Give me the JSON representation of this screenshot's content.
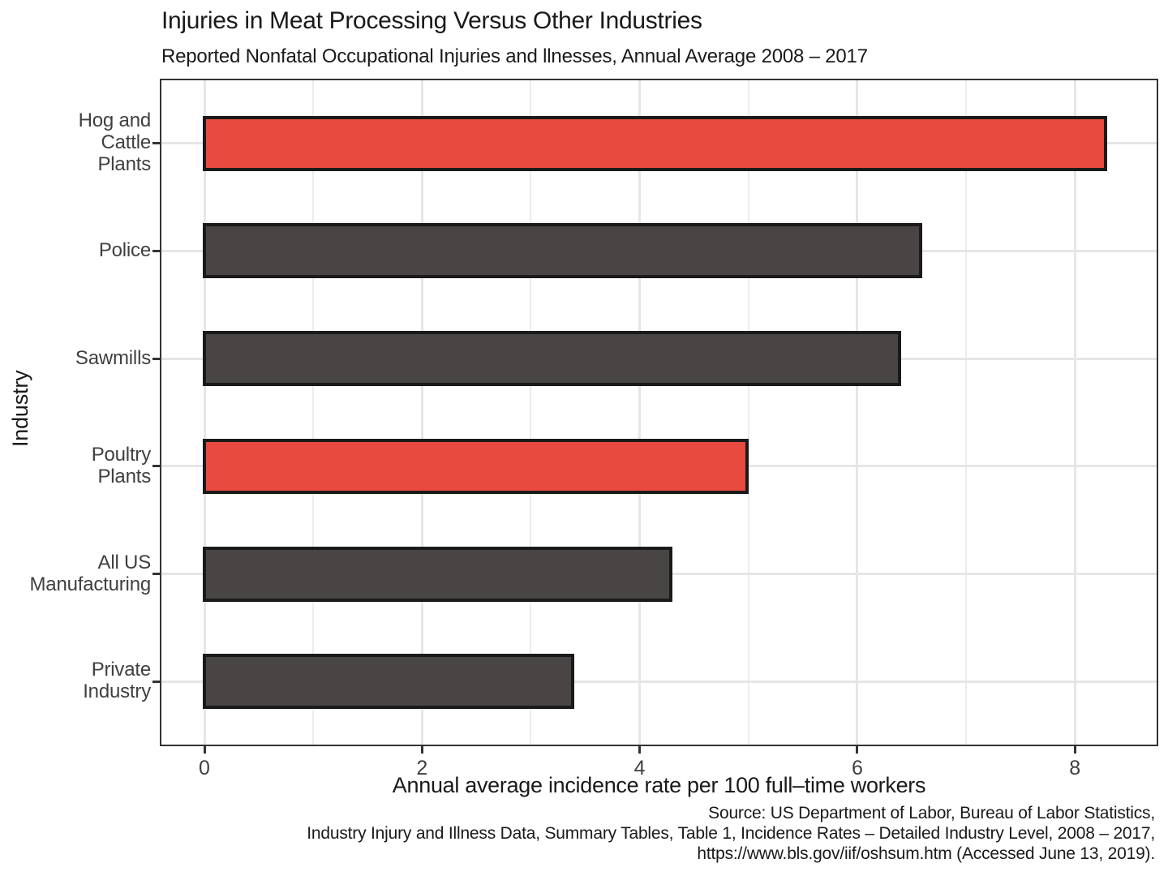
{
  "chart_data": {
    "type": "bar",
    "orientation": "horizontal",
    "title": "Injuries in Meat Processing Versus Other Industries",
    "subtitle": "Reported Nonfatal Occupational Injuries and llnesses, Annual Average 2008 – 2017",
    "xlabel": "Annual average incidence rate per 100 full–time workers",
    "ylabel": "Industry",
    "categories": [
      "Hog and Cattle Plants",
      "Police",
      "Sawmills",
      "Poultry Plants",
      "All US Manufacturing",
      "Private Industry"
    ],
    "category_label_lines": [
      [
        "Hog and",
        "Cattle",
        "Plants"
      ],
      [
        "Police"
      ],
      [
        "Sawmills"
      ],
      [
        "Poultry",
        "Plants"
      ],
      [
        "All US",
        "Manufacturing"
      ],
      [
        "Private",
        "Industry"
      ]
    ],
    "values": [
      8.3,
      6.6,
      6.4,
      5.0,
      4.3,
      3.4
    ],
    "highlighted": [
      true,
      false,
      false,
      true,
      false,
      false
    ],
    "x_ticks": [
      0,
      2,
      4,
      6,
      8
    ],
    "x_gridlines_minor": [
      1,
      3,
      5,
      7
    ],
    "xlim": [
      -0.42,
      8.76
    ],
    "ylim_categories": 6,
    "grid": true,
    "legend": "none",
    "colors": {
      "highlight_fill": "#E94A3F",
      "default_fill": "#4A4545",
      "bar_border": "#1A1A1A",
      "gridline_major": "#E6E6E6",
      "gridline_minor": "#EDEDED",
      "panel_border": "#333333",
      "tick_mark": "#333333",
      "axis_text": "#404040",
      "title_text": "#1A1A1A"
    }
  },
  "caption": {
    "lines": [
      "Source: US Department of Labor, Bureau of Labor Statistics,",
      "Industry Injury and Illness Data, Summary Tables, Table 1, Incidence Rates – Detailed Industry Level, 2008 – 2017,",
      "https://www.bls.gov/iif/oshsum.htm (Accessed June 13, 2019)."
    ]
  }
}
